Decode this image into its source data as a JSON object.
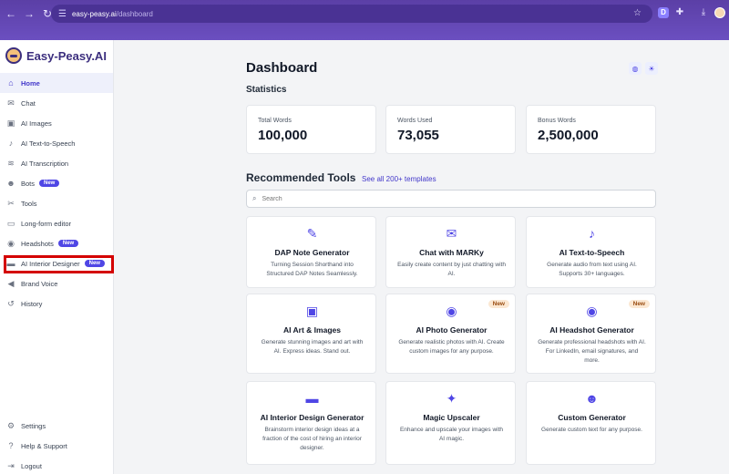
{
  "browser": {
    "url_host": "easy-peasy.ai",
    "url_path": "/dashboard",
    "extension_label": "D"
  },
  "sidebar": {
    "logo_text": "Easy-Peasy.AI",
    "items": [
      {
        "label": "Home",
        "icon": "home-icon",
        "glyph": "⌂"
      },
      {
        "label": "Chat",
        "icon": "chat-icon",
        "glyph": "✉"
      },
      {
        "label": "AI Images",
        "icon": "image-icon",
        "glyph": "▣"
      },
      {
        "label": "AI Text-to-Speech",
        "icon": "microphone-icon",
        "glyph": "♪"
      },
      {
        "label": "AI Transcription",
        "icon": "waveform-icon",
        "glyph": "≋"
      },
      {
        "label": "Bots",
        "icon": "robot-icon",
        "glyph": "☻",
        "badge": "New"
      },
      {
        "label": "Tools",
        "icon": "tools-icon",
        "glyph": "✂"
      },
      {
        "label": "Long-form editor",
        "icon": "editor-icon",
        "glyph": "▭"
      },
      {
        "label": "Headshots",
        "icon": "camera-icon",
        "glyph": "◉",
        "badge": "New"
      },
      {
        "label": "AI Interior Designer",
        "icon": "sofa-icon",
        "glyph": "▬",
        "badge": "New"
      },
      {
        "label": "Brand Voice",
        "icon": "megaphone-icon",
        "glyph": "◀"
      },
      {
        "label": "History",
        "icon": "history-icon",
        "glyph": "↺"
      }
    ],
    "bottom_items": [
      {
        "label": "Settings",
        "icon": "gear-icon",
        "glyph": "⚙"
      },
      {
        "label": "Help & Support",
        "icon": "help-icon",
        "glyph": "?"
      },
      {
        "label": "Logout",
        "icon": "logout-icon",
        "glyph": "⇥"
      }
    ]
  },
  "main": {
    "title": "Dashboard",
    "statistics_label": "Statistics",
    "stats": [
      {
        "label": "Total Words",
        "value": "100,000"
      },
      {
        "label": "Words Used",
        "value": "73,055"
      },
      {
        "label": "Bonus Words",
        "value": "2,500,000"
      }
    ],
    "recommended_title": "Recommended Tools",
    "see_all": "See all 200+ templates",
    "search_placeholder": "Search",
    "tools": [
      {
        "title": "DAP Note Generator",
        "desc": "Turning Session Shorthand into Structured DAP Notes Seamlessly.",
        "icon": "pencil-icon",
        "glyph": "✎"
      },
      {
        "title": "Chat with MARKy",
        "desc": "Easily create content by just chatting with AI.",
        "icon": "chat-bubbles-icon",
        "glyph": "✉"
      },
      {
        "title": "AI Text-to-Speech",
        "desc": "Generate audio from text using AI. Supports 30+ languages.",
        "icon": "microphone-icon",
        "glyph": "♪"
      },
      {
        "title": "AI Art & Images",
        "desc": "Generate stunning images and art with AI. Express ideas. Stand out.",
        "icon": "image-icon",
        "glyph": "▣"
      },
      {
        "title": "AI Photo Generator",
        "desc": "Generate realistic photos with AI. Create custom images for any purpose.",
        "icon": "camera-icon",
        "glyph": "◉",
        "badge": "New"
      },
      {
        "title": "AI Headshot Generator",
        "desc": "Generate professional headshots with AI. For LinkedIn, email signatures, and more.",
        "icon": "camera-icon",
        "glyph": "◉",
        "badge": "New"
      },
      {
        "title": "AI Interior Design Generator",
        "desc": "Brainstorm interior design ideas at a fraction of the cost of hiring an interior designer.",
        "icon": "sofa-icon",
        "glyph": "▬"
      },
      {
        "title": "Magic Upscaler",
        "desc": "Enhance and upscale your images with AI magic.",
        "icon": "sparkles-icon",
        "glyph": "✦"
      },
      {
        "title": "Custom Generator",
        "desc": "Generate custom text for any purpose.",
        "icon": "robot-icon",
        "glyph": "☻"
      }
    ]
  }
}
